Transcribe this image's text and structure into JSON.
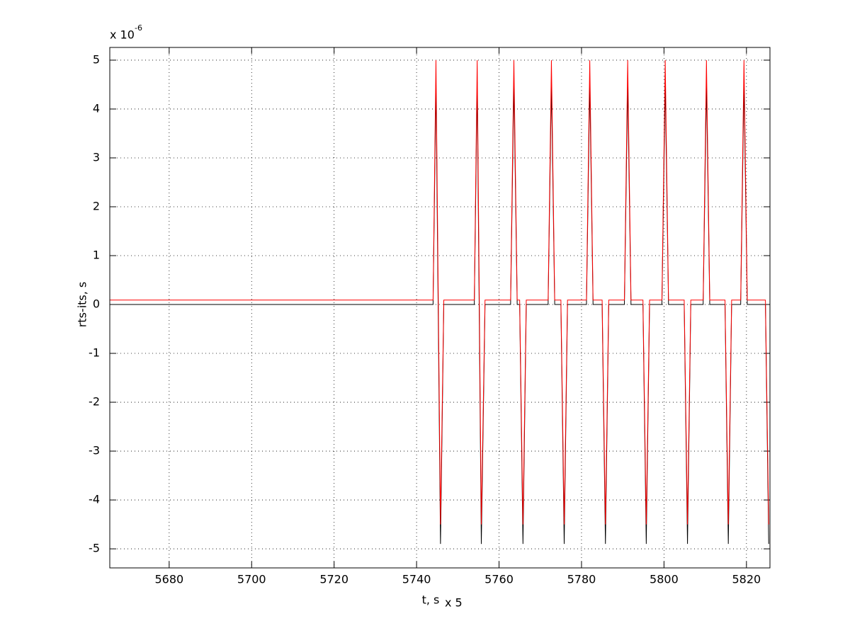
{
  "chart_data": {
    "type": "line",
    "xlabel": "t, s",
    "x_multiplier": "x 5",
    "ylabel": "rts-its, s",
    "y_multiplier": {
      "base": "x 10",
      "exponent": "-6"
    },
    "x": [
      5665.6,
      5744.0,
      5744.7,
      5745.8,
      5746.6,
      5754.0,
      5754.7,
      5755.7,
      5756.6,
      5762.8,
      5763.6,
      5764.4,
      5765.0,
      5765.8,
      5766.6,
      5771.9,
      5772.7,
      5773.5,
      5775.0,
      5775.8,
      5776.6,
      5781.2,
      5782.0,
      5782.8,
      5785.0,
      5785.8,
      5786.6,
      5790.4,
      5791.2,
      5792.0,
      5794.9,
      5795.7,
      5796.5,
      5799.5,
      5800.3,
      5801.1,
      5804.9,
      5805.7,
      5806.5,
      5809.5,
      5810.3,
      5811.1,
      5814.8,
      5815.6,
      5816.4,
      5818.6,
      5819.4,
      5820.2,
      5824.6,
      5825.4
    ],
    "series": [
      {
        "color": "#000000",
        "values": [
          0,
          0,
          4.55,
          -4.9,
          0,
          0,
          4.55,
          -4.9,
          0,
          0,
          4.55,
          0,
          0,
          -4.9,
          0,
          0,
          4.55,
          0,
          0,
          -4.9,
          0,
          0,
          4.55,
          0,
          0,
          -4.9,
          0,
          0,
          4.55,
          0,
          0,
          -4.9,
          0,
          0,
          4.55,
          0,
          0,
          -4.9,
          0,
          0,
          4.55,
          0,
          0,
          -4.9,
          0,
          0,
          4.55,
          0,
          0,
          -4.9
        ]
      },
      {
        "color": "#ff0000",
        "values": [
          0.09,
          0.09,
          5,
          -4.5,
          0.09,
          0.09,
          5,
          -4.5,
          0.09,
          0.09,
          5,
          0.09,
          0.09,
          -4.5,
          0.09,
          0.09,
          5,
          0.09,
          0.09,
          -4.5,
          0.09,
          0.09,
          5,
          0.09,
          0.09,
          -4.5,
          0.09,
          0.09,
          5,
          0.09,
          0.09,
          -4.5,
          0.09,
          0.09,
          5,
          0.09,
          0.09,
          -4.5,
          0.09,
          0.09,
          5,
          0.09,
          0.09,
          -4.5,
          0.09,
          0.09,
          5,
          0.09,
          0.09,
          -4.5
        ]
      }
    ],
    "xlim": [
      5665.6,
      5825.7
    ],
    "xticks": [
      5680,
      5700,
      5720,
      5740,
      5760,
      5780,
      5800,
      5820
    ],
    "ylim": [
      -5.39,
      5.26
    ],
    "yticks": [
      -5,
      -4,
      -3,
      -2,
      -1,
      0,
      1,
      2,
      3,
      4,
      5
    ],
    "grid": true
  }
}
